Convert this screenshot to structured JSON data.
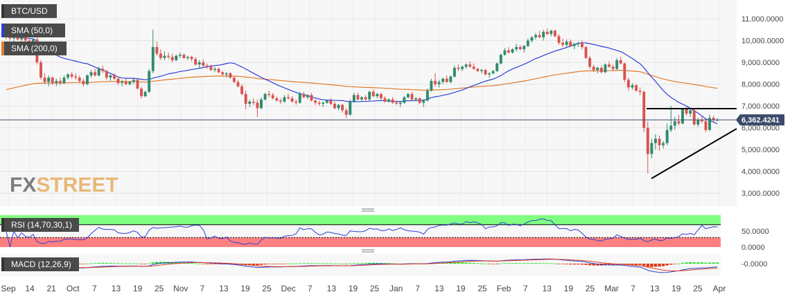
{
  "chart_data": [
    {
      "type": "candlestick",
      "title": "BTC/USD",
      "price_label": "6,362.4241",
      "y_ticks": [
        "11,000.0000",
        "10,000.0000",
        "9,000.0000",
        "8,000.0000",
        "7,000.0000",
        "6,000.0000",
        "5,000.0000",
        "4,000.0000",
        "3,000.0000"
      ],
      "y_tick_values": [
        11000,
        10000,
        9000,
        8000,
        7000,
        6000,
        5000,
        4000,
        3000
      ],
      "ylim": [
        2500,
        11700
      ],
      "x_ticks": [
        "Sep",
        "14",
        "21",
        "Oct",
        "7",
        "13",
        "19",
        "25",
        "Nov",
        "7",
        "13",
        "19",
        "25",
        "Dec",
        "7",
        "13",
        "19",
        "25",
        "Jan",
        "7",
        "13",
        "19",
        "25",
        "Feb",
        "7",
        "13",
        "19",
        "25",
        "Mar",
        "7",
        "13",
        "19",
        "25",
        "Apr"
      ],
      "grid": true,
      "current_price": 6362.4241,
      "candles": [
        [
          10150,
          10300,
          10050,
          10200
        ],
        [
          10200,
          10400,
          10000,
          10100
        ],
        [
          10100,
          10250,
          9900,
          10200
        ],
        [
          10200,
          10300,
          10000,
          10050
        ],
        [
          10050,
          10200,
          9950,
          10150
        ],
        [
          10150,
          10250,
          9950,
          10000
        ],
        [
          10000,
          10100,
          9900,
          9950
        ],
        [
          9950,
          10100,
          9850,
          10050
        ],
        [
          10050,
          10150,
          8900,
          9000
        ],
        [
          9000,
          9100,
          8200,
          8300
        ],
        [
          8300,
          8500,
          8000,
          8100
        ],
        [
          8100,
          8400,
          7900,
          8300
        ],
        [
          8300,
          8350,
          7950,
          8050
        ],
        [
          8050,
          8250,
          7900,
          8150
        ],
        [
          8150,
          8300,
          7950,
          8050
        ],
        [
          8050,
          8400,
          8000,
          8300
        ],
        [
          8300,
          8500,
          8200,
          8450
        ],
        [
          8450,
          8550,
          8250,
          8350
        ],
        [
          8350,
          8500,
          8200,
          8300
        ],
        [
          8300,
          8400,
          8050,
          8150
        ],
        [
          8150,
          8250,
          7900,
          8000
        ],
        [
          8000,
          8450,
          7950,
          8400
        ],
        [
          8400,
          8650,
          8300,
          8550
        ],
        [
          8550,
          8700,
          8350,
          8400
        ],
        [
          8400,
          8800,
          8350,
          8700
        ],
        [
          8700,
          8850,
          8500,
          8600
        ],
        [
          8600,
          8650,
          8200,
          8300
        ],
        [
          8300,
          8450,
          8150,
          8400
        ],
        [
          8400,
          8500,
          8200,
          8250
        ],
        [
          8250,
          8350,
          7950,
          8050
        ],
        [
          8050,
          8200,
          7900,
          8100
        ],
        [
          8100,
          8250,
          7950,
          8000
        ],
        [
          8000,
          8150,
          7950,
          8100
        ],
        [
          8100,
          8300,
          8000,
          8200
        ],
        [
          8200,
          8250,
          7750,
          7800
        ],
        [
          7800,
          7900,
          7350,
          7450
        ],
        [
          7450,
          7700,
          7400,
          7650
        ],
        [
          7650,
          8700,
          7600,
          8600
        ],
        [
          8600,
          10500,
          8500,
          9700
        ],
        [
          9700,
          9950,
          9300,
          9400
        ],
        [
          9400,
          9600,
          9100,
          9200
        ],
        [
          9200,
          9500,
          9100,
          9300
        ],
        [
          9300,
          9450,
          9150,
          9250
        ],
        [
          9250,
          9400,
          9000,
          9100
        ],
        [
          9100,
          9350,
          9050,
          9300
        ],
        [
          9300,
          9450,
          9200,
          9350
        ],
        [
          9350,
          9400,
          9150,
          9200
        ],
        [
          9200,
          9300,
          9100,
          9250
        ],
        [
          9250,
          9300,
          9050,
          9150
        ],
        [
          9150,
          9250,
          8850,
          8900
        ],
        [
          8900,
          9100,
          8700,
          9000
        ],
        [
          9000,
          9150,
          8800,
          8850
        ],
        [
          8850,
          8950,
          8700,
          8800
        ],
        [
          8800,
          8900,
          8600,
          8650
        ],
        [
          8650,
          8800,
          8550,
          8700
        ],
        [
          8700,
          8750,
          8500,
          8550
        ],
        [
          8550,
          8600,
          8350,
          8450
        ],
        [
          8450,
          8550,
          8300,
          8500
        ],
        [
          8500,
          8550,
          8250,
          8300
        ],
        [
          8300,
          8350,
          8050,
          8100
        ],
        [
          8100,
          8200,
          7850,
          7900
        ],
        [
          7900,
          8000,
          7500,
          7550
        ],
        [
          7550,
          7700,
          6850,
          7100
        ],
        [
          7100,
          7300,
          6950,
          7200
        ],
        [
          7200,
          7350,
          7050,
          7150
        ],
        [
          7150,
          7300,
          6500,
          6900
        ],
        [
          6900,
          7400,
          6850,
          7300
        ],
        [
          7300,
          7600,
          7250,
          7550
        ],
        [
          7550,
          7700,
          7400,
          7500
        ],
        [
          7500,
          7600,
          7300,
          7350
        ],
        [
          7350,
          7450,
          7200,
          7250
        ],
        [
          7250,
          7350,
          7100,
          7200
        ],
        [
          7200,
          7500,
          7150,
          7400
        ],
        [
          7400,
          7550,
          7300,
          7350
        ],
        [
          7350,
          7450,
          7150,
          7200
        ],
        [
          7200,
          7300,
          7050,
          7150
        ],
        [
          7150,
          7650,
          7100,
          7550
        ],
        [
          7550,
          7650,
          7350,
          7400
        ],
        [
          7400,
          7550,
          7300,
          7500
        ],
        [
          7500,
          7600,
          7200,
          7250
        ],
        [
          7250,
          7300,
          7050,
          7150
        ],
        [
          7150,
          7250,
          7000,
          7100
        ],
        [
          7100,
          7200,
          6950,
          7150
        ],
        [
          7150,
          7300,
          7100,
          7250
        ],
        [
          7250,
          7350,
          7050,
          7100
        ],
        [
          7100,
          7200,
          6850,
          6900
        ],
        [
          6900,
          7100,
          6800,
          7050
        ],
        [
          7050,
          7100,
          6700,
          6800
        ],
        [
          6800,
          6900,
          6450,
          6600
        ],
        [
          6600,
          7300,
          6550,
          7200
        ],
        [
          7200,
          7600,
          7150,
          7500
        ],
        [
          7500,
          7600,
          7250,
          7300
        ],
        [
          7300,
          7450,
          7200,
          7400
        ],
        [
          7400,
          7500,
          7250,
          7300
        ],
        [
          7300,
          7700,
          7250,
          7650
        ],
        [
          7650,
          7750,
          7400,
          7450
        ],
        [
          7450,
          7600,
          7350,
          7550
        ],
        [
          7550,
          7600,
          7300,
          7350
        ],
        [
          7350,
          7450,
          7150,
          7200
        ],
        [
          7200,
          7350,
          7150,
          7300
        ],
        [
          7300,
          7400,
          7100,
          7150
        ],
        [
          7150,
          7250,
          7050,
          7100
        ],
        [
          7100,
          7200,
          6950,
          7150
        ],
        [
          7150,
          7450,
          7100,
          7400
        ],
        [
          7400,
          7600,
          7350,
          7550
        ],
        [
          7550,
          7650,
          7250,
          7300
        ],
        [
          7300,
          7400,
          7200,
          7350
        ],
        [
          7350,
          7400,
          7100,
          7150
        ],
        [
          7150,
          7300,
          6950,
          7250
        ],
        [
          7250,
          7800,
          7200,
          7700
        ],
        [
          7700,
          8250,
          7650,
          8150
        ],
        [
          8150,
          8500,
          7900,
          8000
        ],
        [
          8000,
          8200,
          7850,
          8100
        ],
        [
          8100,
          8300,
          8000,
          8250
        ],
        [
          8250,
          8400,
          8050,
          8100
        ],
        [
          8100,
          8400,
          8050,
          8350
        ],
        [
          8350,
          8850,
          8300,
          8750
        ],
        [
          8750,
          8900,
          8600,
          8700
        ],
        [
          8700,
          8850,
          8600,
          8800
        ],
        [
          8800,
          8950,
          8700,
          8900
        ],
        [
          8900,
          9050,
          8750,
          8800
        ],
        [
          8800,
          8950,
          8650,
          8700
        ],
        [
          8700,
          8750,
          8550,
          8600
        ],
        [
          8600,
          8700,
          8500,
          8650
        ],
        [
          8650,
          8700,
          8400,
          8450
        ],
        [
          8450,
          8550,
          8300,
          8500
        ],
        [
          8500,
          8650,
          8450,
          8600
        ],
        [
          8600,
          9000,
          8550,
          8950
        ],
        [
          8950,
          9400,
          8900,
          9350
        ],
        [
          9350,
          9650,
          9300,
          9550
        ],
        [
          9550,
          9700,
          9400,
          9450
        ],
        [
          9450,
          9650,
          9400,
          9600
        ],
        [
          9600,
          9850,
          9500,
          9700
        ],
        [
          9700,
          9800,
          9550,
          9600
        ],
        [
          9600,
          9800,
          9450,
          9750
        ],
        [
          9750,
          10100,
          9700,
          10000
        ],
        [
          10000,
          10200,
          9900,
          10150
        ],
        [
          10150,
          10350,
          10050,
          10250
        ],
        [
          10250,
          10450,
          10100,
          10150
        ],
        [
          10150,
          10500,
          10000,
          10400
        ],
        [
          10400,
          10550,
          10250,
          10300
        ],
        [
          10300,
          10500,
          10200,
          10450
        ],
        [
          10450,
          10500,
          10150,
          10200
        ],
        [
          10200,
          10300,
          9800,
          9900
        ],
        [
          9900,
          10100,
          9700,
          9800
        ],
        [
          9800,
          10050,
          9650,
          9950
        ],
        [
          9950,
          10050,
          9700,
          9750
        ],
        [
          9750,
          9900,
          9600,
          9850
        ],
        [
          9850,
          9950,
          9700,
          9900
        ],
        [
          9900,
          10000,
          9600,
          9700
        ],
        [
          9700,
          9750,
          9150,
          9200
        ],
        [
          9200,
          9300,
          8700,
          8800
        ],
        [
          8800,
          8900,
          8550,
          8650
        ],
        [
          8650,
          8800,
          8500,
          8750
        ],
        [
          8750,
          8850,
          8500,
          8550
        ],
        [
          8550,
          8950,
          8500,
          8900
        ],
        [
          8900,
          9050,
          8750,
          8800
        ],
        [
          8800,
          8900,
          8600,
          8700
        ],
        [
          8700,
          9200,
          8650,
          9100
        ],
        [
          9100,
          9250,
          8900,
          8950
        ],
        [
          8950,
          9000,
          8100,
          8200
        ],
        [
          8200,
          8300,
          7700,
          7850
        ],
        [
          7850,
          8050,
          7750,
          7950
        ],
        [
          7950,
          8000,
          7650,
          7700
        ],
        [
          7700,
          7850,
          7500,
          7650
        ],
        [
          7650,
          7700,
          5800,
          6000
        ],
        [
          6000,
          6300,
          3900,
          4800
        ],
        [
          4800,
          5500,
          4600,
          5300
        ],
        [
          5300,
          5700,
          5000,
          5500
        ],
        [
          5500,
          5650,
          4950,
          5200
        ],
        [
          5200,
          5400,
          5050,
          5300
        ],
        [
          5300,
          6200,
          5200,
          5900
        ],
        [
          5900,
          7000,
          5800,
          6100
        ],
        [
          6100,
          6500,
          5900,
          6300
        ],
        [
          6300,
          6600,
          6100,
          6200
        ],
        [
          6200,
          6900,
          6150,
          6850
        ],
        [
          6850,
          6950,
          6550,
          6650
        ],
        [
          6650,
          6850,
          6500,
          6800
        ],
        [
          6800,
          6900,
          6100,
          6150
        ],
        [
          6150,
          6450,
          6050,
          6350
        ],
        [
          6350,
          6550,
          6200,
          6300
        ],
        [
          6300,
          6400,
          5800,
          5900
        ],
        [
          5900,
          6600,
          5850,
          6450
        ],
        [
          6450,
          6550,
          6250,
          6350
        ],
        [
          6350,
          6450,
          6300,
          6362
        ]
      ]
    },
    {
      "type": "line",
      "title": "RSI (14,70,30,1)",
      "y_ticks": [
        "50.0000",
        "0.0000"
      ],
      "y_tick_values": [
        50,
        0
      ],
      "ylim": [
        0,
        100
      ],
      "overbought": 70,
      "oversold": 30
    },
    {
      "type": "line",
      "title": "MACD (12,26,9)",
      "y_ticks": [
        "-0.0000"
      ]
    }
  ],
  "legend": {
    "sma50": "SMA (50,0)",
    "sma200": "SMA (200,0)"
  },
  "logo": "FXSTREET",
  "colors": {
    "bull": "#2e8b6d",
    "bear": "#d9534f",
    "sma50": "#2b3fd6",
    "sma200": "#e07b2a",
    "rsi_over": "#80ff80",
    "rsi_under": "#ff8080",
    "price_tag": "#3a4a6a"
  }
}
